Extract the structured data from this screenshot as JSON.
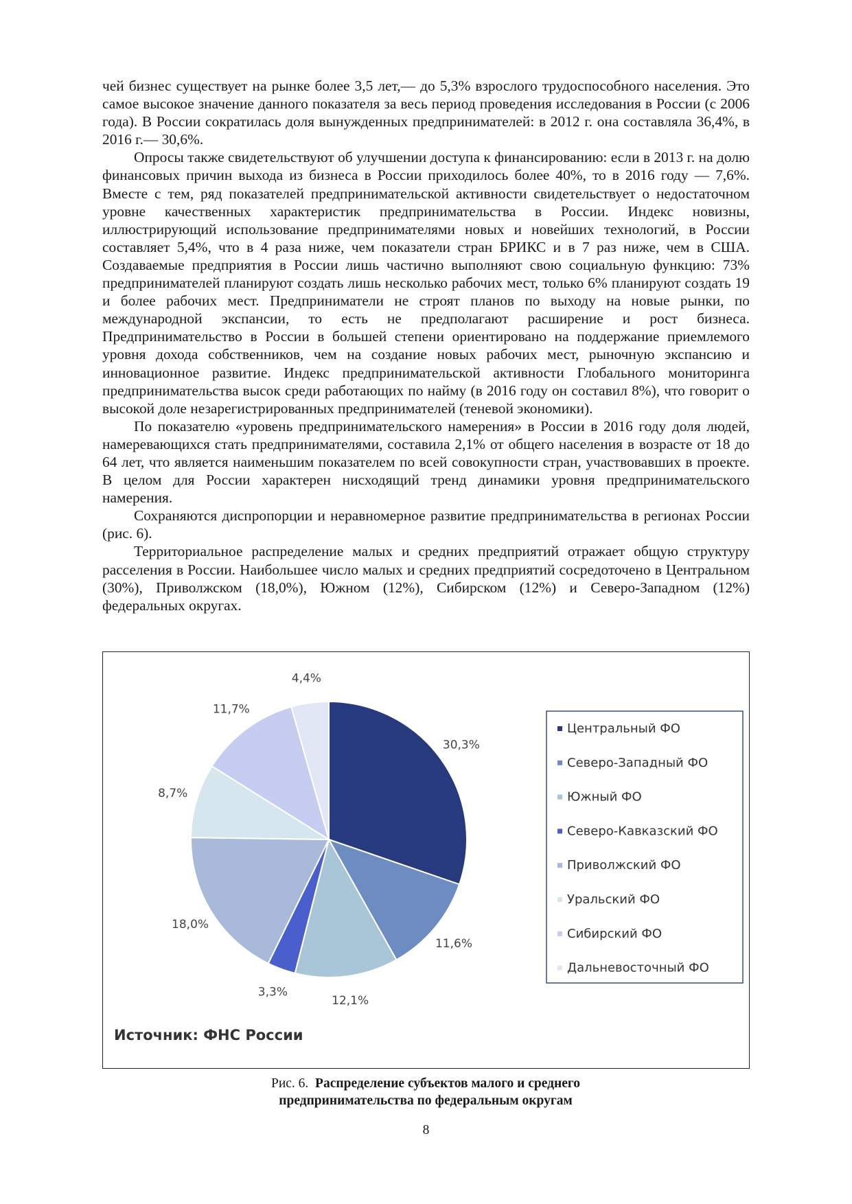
{
  "paragraphs": [
    "чей бизнес существует на рынке более 3,5 лет,— до 5,3% взрослого трудоспособного населения. Это самое высокое значение данного показателя за весь период проведения исследования в России (с 2006 года). В России сократилась доля вынужденных предпринимателей: в 2012 г. она составляла 36,4%, в 2016 г.— 30,6%.",
    "Опросы также свидетельствуют об улучшении доступа к финансированию: если в 2013 г. на долю финансовых причин выхода из бизнеса в России приходилось более 40%, то в 2016 году — 7,6%. Вместе с тем, ряд показателей предпринимательской активности свидетельствует о недостаточном уровне качественных характеристик предпринимательства в России. Индекс новизны, иллюстрирующий использование предпринимателями новых и новейших технологий, в России составляет 5,4%, что в 4 раза ниже, чем показатели стран БРИКС и в 7 раз ниже, чем в США. Создаваемые предприятия в России лишь частично выполняют свою социальную функцию: 73% предпринимателей планируют создать лишь несколько рабочих мест, только 6% планируют создать 19 и более рабочих мест. Предприниматели не строят планов по выходу на новые рынки, по международной экспансии, то есть не предполагают расширение и рост бизнеса. Предпринимательство в России в большей степени ориентировано на поддержание приемлемого уровня дохода собственников, чем на создание новых рабочих мест, рыночную экспансию и инновационное развитие. Индекс предпринимательской активности Глобального мониторинга предпринимательства высок среди работающих по найму (в 2016 году он составил 8%), что говорит о высокой доле незарегистрированных предпринимателей (теневой экономики).",
    "По показателю «уровень предпринимательского намерения» в России в 2016 году доля людей, намеревающихся стать предпринимателями, составила 2,1% от общего населения в возрасте от 18 до 64 лет, что является наименьшим показателем по всей совокупности стран, участвовавших в проекте. В целом для России характерен нисходящий тренд динамики уровня предпринимательского намерения.",
    "Сохраняются диспропорции и неравномерное развитие предпринимательства в регионах России (рис. 6).",
    "Территориальное распределение малых и средних предприятий отражает общую структуру расселения в России. Наибольшее число малых и средних предприятий сосредоточено в Центральном (30%), Приволжском (18,0%), Южном (12%), Сибирском (12%) и Северо-Западном (12%) федеральных округах."
  ],
  "chart_data": {
    "type": "pie",
    "categories": [
      "Центральный ФО",
      "Северо-Западный ФО",
      "Южный ФО",
      "Северо-Кавказский ФО",
      "Приволжский ФО",
      "Уральский ФО",
      "Сибирский ФО",
      "Дальневосточный ФО"
    ],
    "values": [
      30.3,
      11.6,
      12.1,
      3.3,
      18.0,
      8.7,
      11.7,
      4.4
    ],
    "value_labels": [
      "30,3%",
      "11,6%",
      "12,1%",
      "3,3%",
      "18,0%",
      "8,7%",
      "11,7%",
      "4,4%"
    ],
    "colors": [
      "#283a7e",
      "#6d8cc2",
      "#a9c6d8",
      "#4a5fcb",
      "#a9b9d9",
      "#d6e6ee",
      "#c6cdf0",
      "#e2e7f5"
    ],
    "legend": "right"
  },
  "source": "Источник: ФНС России",
  "caption": {
    "label": "Рис. 6.",
    "title": "Распределение субъектов малого и среднего предпринимательства по федеральным округам"
  },
  "page_number": "8"
}
